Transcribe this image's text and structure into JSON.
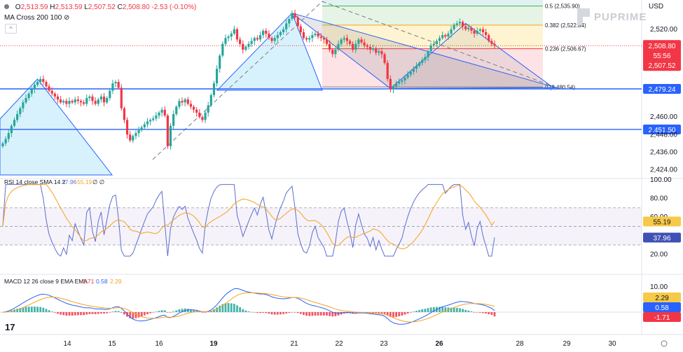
{
  "header": {
    "ohlc": {
      "o_label": "O",
      "o": "2,513.59",
      "h_label": "H",
      "h": "2,513.59",
      "l_label": "L",
      "l": "2,507.52",
      "c_label": "C",
      "c": "2,508.80",
      "change": "-2.53 (-0.10%)"
    },
    "indicator": "MA Cross 200 100"
  },
  "brand": "PUPRIME",
  "currency": "USD",
  "colors": {
    "up": "#26a69a",
    "down": "#f23645",
    "blue": "#2962ff",
    "orange": "#f7a21b",
    "rsi": "#5b6ed0"
  },
  "chart_data": {
    "type": "candlestick",
    "x_ticks": [
      "14",
      "15",
      "16",
      "19",
      "21",
      "22",
      "23",
      "26",
      "28",
      "29",
      "30"
    ],
    "price_axis": {
      "ticks": [
        2424.0,
        2436.0,
        2448.0,
        2460.0,
        2472.0,
        2484.0,
        2496.0,
        2508.0,
        2520.0
      ],
      "tick_labels": [
        "2,424.00",
        "2,436.00",
        "2,448.00",
        "2,460.00",
        "",
        "",
        "",
        "",
        "2,520.00"
      ],
      "ylim": [
        2418,
        2540
      ]
    },
    "horizontal_lines": [
      {
        "value": 2479.24,
        "label": "2,479.24"
      },
      {
        "value": 2451.5,
        "label": "2,451.50"
      }
    ],
    "last_price": {
      "value": 2508.8,
      "label": "2,508.80",
      "countdown": "55:56",
      "low_label": "2,507.52"
    },
    "fibonacci": [
      {
        "level": "0.5",
        "value": 2535.9,
        "label": "0.5 (2,535.90)"
      },
      {
        "level": "0.382",
        "value": 2522.84,
        "label": "0.382 (2,522.84)"
      },
      {
        "level": "0.236",
        "value": 2506.67,
        "label": "0.236 (2,506.67)"
      },
      {
        "level": "0",
        "value": 2480.54,
        "label": "0 (2,480.54)"
      }
    ],
    "candles_close": [
      2442,
      2445,
      2449,
      2454,
      2458,
      2462,
      2466,
      2470,
      2473,
      2476,
      2479,
      2482,
      2484,
      2486,
      2484,
      2481,
      2478,
      2476,
      2474,
      2472,
      2470,
      2471,
      2469,
      2471,
      2470,
      2472,
      2471,
      2470,
      2469,
      2473,
      2474,
      2471,
      2469,
      2472,
      2474,
      2470,
      2473,
      2478,
      2483,
      2484,
      2480,
      2466,
      2458,
      2448,
      2444,
      2447,
      2449,
      2451,
      2453,
      2455,
      2457,
      2458,
      2459,
      2461,
      2463,
      2465,
      2461,
      2440,
      2454,
      2462,
      2467,
      2471,
      2470,
      2472,
      2469,
      2467,
      2465,
      2463,
      2460,
      2458,
      2463,
      2468,
      2475,
      2483,
      2493,
      2502,
      2510,
      2514,
      2515,
      2517,
      2520,
      2513,
      2510,
      2506,
      2508,
      2510,
      2512,
      2514,
      2513,
      2516,
      2519,
      2517,
      2514,
      2512,
      2514,
      2516,
      2518,
      2520,
      2524,
      2527,
      2531,
      2528,
      2522,
      2518,
      2514,
      2513,
      2514,
      2516,
      2517,
      2515,
      2514,
      2513,
      2510,
      2506,
      2503,
      2506,
      2510,
      2513,
      2514,
      2512,
      2510,
      2506,
      2510,
      2513,
      2511,
      2509,
      2508,
      2506,
      2507,
      2504,
      2505,
      2503,
      2497,
      2486,
      2479,
      2481,
      2483,
      2484,
      2485,
      2487,
      2489,
      2491,
      2493,
      2495,
      2497,
      2499,
      2501,
      2505,
      2509,
      2510,
      2512,
      2514,
      2516,
      2515,
      2517,
      2520,
      2523,
      2524,
      2525,
      2522,
      2520,
      2521,
      2519,
      2517,
      2519,
      2520,
      2518,
      2516,
      2512,
      2510,
      2508.8
    ],
    "rsi": {
      "label": "RSI 14 close SMA 14 2",
      "value": "37.96",
      "sma": "55.19",
      "extra": "∅ ∅",
      "ticks": [
        "100.00",
        "80.00",
        "60.00",
        "20.00"
      ],
      "overbought": 70,
      "oversold": 30,
      "mid": 50
    },
    "macd": {
      "label": "MACD 12 26 close 9 EMA EMA",
      "hist": "-1.71",
      "macd": "0.58",
      "signal": "2.29",
      "ticks": [
        "10.00"
      ]
    }
  }
}
